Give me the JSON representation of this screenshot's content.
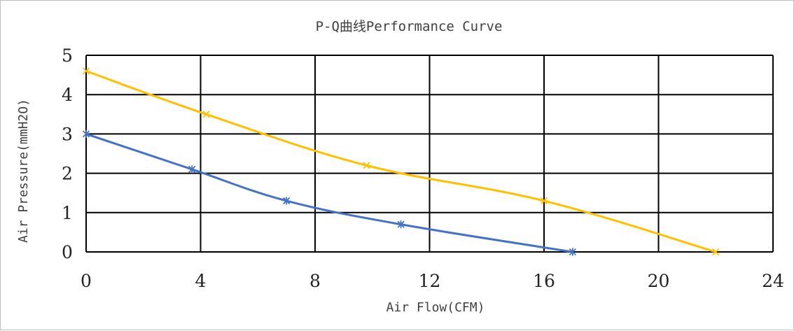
{
  "chart_data": {
    "type": "line",
    "title": "P-Q曲线Performance Curve",
    "xlabel": "Air Flow(CFM)",
    "ylabel": "Air Pressure(mmH2O)",
    "xlim": [
      0,
      24
    ],
    "ylim": [
      0,
      5
    ],
    "xticks": [
      0,
      4,
      8,
      12,
      16,
      20,
      24
    ],
    "yticks": [
      0,
      1,
      2,
      3,
      4,
      5
    ],
    "grid": true,
    "legend": "none",
    "series": [
      {
        "color": "#4472C4",
        "marker": "asterisk",
        "x": [
          0,
          3.7,
          7,
          11,
          17
        ],
        "y": [
          3.0,
          2.1,
          1.3,
          0.7,
          0.0
        ]
      },
      {
        "color": "#FFC000",
        "marker": "x",
        "x": [
          0,
          4.2,
          9.8,
          16,
          22
        ],
        "y": [
          4.6,
          3.5,
          2.2,
          1.3,
          0.0
        ]
      }
    ]
  }
}
